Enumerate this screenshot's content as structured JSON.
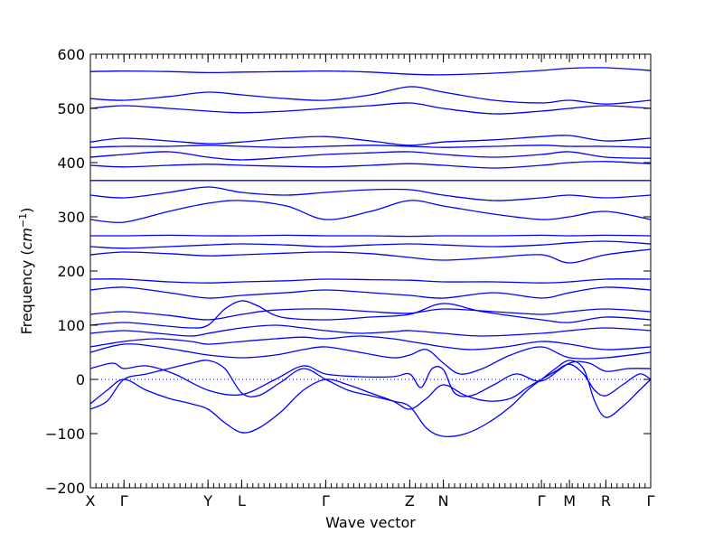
{
  "chart_data": {
    "type": "line",
    "xlabel": "Wave vector",
    "ylabel_text": "Frequency (",
    "ylabel_unit_base": "cm",
    "ylabel_unit_exp": "−1",
    "ylabel_close": ")",
    "ylim": [
      -200,
      600
    ],
    "yticks": [
      -200,
      -100,
      0,
      100,
      200,
      300,
      400,
      500,
      600
    ],
    "ytick_labels": [
      "−200",
      "−100",
      "0",
      "100",
      "200",
      "300",
      "400",
      "500",
      "600"
    ],
    "xlim": [
      0,
      100
    ],
    "high_symmetry_points": [
      {
        "label": "X",
        "x": 0
      },
      {
        "label": "Γ",
        "x": 6
      },
      {
        "label": "Y",
        "x": 21
      },
      {
        "label": "L",
        "x": 27
      },
      {
        "label": "Γ",
        "x": 42
      },
      {
        "label": "Z",
        "x": 57
      },
      {
        "label": "N",
        "x": 63
      },
      {
        "label": "Γ",
        "x": 80.5
      },
      {
        "label": "M",
        "x": 85.5
      },
      {
        "label": "R",
        "x": 92
      },
      {
        "label": "Γ",
        "x": 100
      }
    ],
    "zero_line": {
      "y": 0,
      "style": "dotted",
      "color": "#0000ff"
    },
    "line_color": "#0000ff",
    "series": [
      {
        "x": [
          0,
          3,
          6,
          10,
          14,
          18,
          21,
          24,
          27,
          30,
          34,
          38,
          42,
          46,
          50,
          54,
          57,
          60,
          63,
          67,
          71,
          75,
          78,
          80.5,
          83,
          85.5,
          88,
          90,
          92,
          95,
          98,
          100
        ],
        "y": [
          -55,
          -40,
          0,
          10,
          20,
          30,
          35,
          20,
          -25,
          -30,
          -5,
          20,
          0,
          -20,
          -30,
          -40,
          -50,
          -90,
          -105,
          -100,
          -80,
          -50,
          -20,
          0,
          20,
          35,
          20,
          -40,
          -70,
          -50,
          -20,
          0
        ]
      },
      {
        "x": [
          0,
          3,
          6,
          10,
          14,
          18,
          21,
          24,
          27,
          30,
          34,
          38,
          42,
          46,
          50,
          54,
          57,
          60,
          63,
          67,
          71,
          75,
          78,
          80.5,
          83,
          85.5,
          88,
          90,
          92,
          95,
          98,
          100
        ],
        "y": [
          -45,
          -20,
          0,
          -20,
          -35,
          -45,
          -55,
          -80,
          -98,
          -90,
          -60,
          -20,
          0,
          -10,
          -25,
          -40,
          -55,
          -35,
          -10,
          -30,
          -40,
          -35,
          -15,
          0,
          15,
          28,
          10,
          -20,
          -30,
          -10,
          10,
          0
        ]
      },
      {
        "x": [
          0,
          4,
          6,
          10,
          15,
          21,
          27,
          33,
          38,
          42,
          48,
          54,
          57,
          59,
          61,
          63,
          65,
          68,
          72,
          76,
          80.5,
          85.5,
          89,
          92,
          96,
          100
        ],
        "y": [
          20,
          30,
          20,
          25,
          10,
          -20,
          -28,
          0,
          25,
          10,
          5,
          5,
          10,
          -15,
          20,
          18,
          -25,
          -30,
          -10,
          10,
          -3,
          30,
          30,
          15,
          20,
          20
        ]
      },
      {
        "x": [
          0,
          6,
          12,
          18,
          21,
          27,
          33,
          38,
          42,
          48,
          54,
          57,
          60,
          63,
          66,
          70,
          75,
          80.5,
          85.5,
          92,
          100
        ],
        "y": [
          50,
          65,
          60,
          50,
          45,
          40,
          45,
          55,
          60,
          50,
          40,
          45,
          55,
          30,
          10,
          20,
          45,
          60,
          40,
          40,
          50
        ]
      },
      {
        "x": [
          0,
          6,
          12,
          18,
          21,
          27,
          33,
          38,
          42,
          48,
          54,
          57,
          60,
          63,
          68,
          74,
          80.5,
          85.5,
          92,
          100
        ],
        "y": [
          60,
          70,
          75,
          70,
          65,
          70,
          75,
          78,
          75,
          80,
          75,
          70,
          65,
          60,
          55,
          60,
          70,
          65,
          55,
          60
        ]
      },
      {
        "x": [
          0,
          6,
          12,
          18,
          21,
          27,
          33,
          38,
          42,
          48,
          54,
          57,
          63,
          70,
          80.5,
          85.5,
          92,
          100
        ],
        "y": [
          85,
          90,
          85,
          80,
          85,
          95,
          100,
          95,
          90,
          85,
          88,
          90,
          85,
          80,
          85,
          90,
          95,
          90
        ]
      },
      {
        "x": [
          0,
          6,
          12,
          18,
          21,
          24,
          27,
          30,
          34,
          42,
          50,
          57,
          63,
          70,
          80.5,
          85.5,
          92,
          100
        ],
        "y": [
          100,
          105,
          100,
          95,
          100,
          130,
          145,
          135,
          115,
          110,
          115,
          120,
          140,
          125,
          110,
          105,
          115,
          110
        ]
      },
      {
        "x": [
          0,
          6,
          14,
          21,
          27,
          33,
          42,
          50,
          57,
          63,
          72,
          80.5,
          85.5,
          92,
          100
        ],
        "y": [
          120,
          125,
          118,
          110,
          120,
          128,
          130,
          125,
          122,
          130,
          125,
          120,
          125,
          130,
          125
        ]
      },
      {
        "x": [
          0,
          6,
          14,
          21,
          27,
          35,
          42,
          50,
          57,
          63,
          72,
          80.5,
          85.5,
          92,
          100
        ],
        "y": [
          165,
          170,
          160,
          150,
          155,
          160,
          165,
          160,
          155,
          150,
          160,
          150,
          160,
          170,
          165
        ]
      },
      {
        "x": [
          0,
          6,
          14,
          21,
          27,
          35,
          42,
          50,
          57,
          63,
          72,
          80.5,
          85.5,
          92,
          100
        ],
        "y": [
          185,
          185,
          180,
          178,
          180,
          182,
          185,
          184,
          183,
          180,
          180,
          178,
          180,
          185,
          185
        ]
      },
      {
        "x": [
          0,
          6,
          14,
          21,
          27,
          35,
          42,
          50,
          57,
          63,
          72,
          80.5,
          85.5,
          92,
          100
        ],
        "y": [
          230,
          235,
          232,
          228,
          230,
          233,
          235,
          232,
          225,
          220,
          225,
          230,
          215,
          230,
          240
        ]
      },
      {
        "x": [
          0,
          6,
          14,
          21,
          27,
          35,
          42,
          50,
          57,
          63,
          72,
          80.5,
          85.5,
          92,
          100
        ],
        "y": [
          245,
          242,
          245,
          248,
          250,
          248,
          245,
          248,
          250,
          248,
          245,
          248,
          252,
          255,
          250
        ]
      },
      {
        "x": [
          0,
          6,
          14,
          21,
          27,
          35,
          42,
          50,
          57,
          63,
          72,
          80.5,
          85.5,
          92,
          100
        ],
        "y": [
          265,
          265,
          266,
          265,
          265,
          266,
          265,
          265,
          264,
          265,
          265,
          266,
          265,
          266,
          265
        ]
      },
      {
        "x": [
          0,
          6,
          14,
          21,
          27,
          35,
          42,
          50,
          57,
          63,
          72,
          80.5,
          85.5,
          92,
          100
        ],
        "y": [
          295,
          290,
          310,
          325,
          330,
          320,
          295,
          310,
          330,
          320,
          305,
          295,
          300,
          310,
          295
        ]
      },
      {
        "x": [
          0,
          6,
          14,
          21,
          27,
          35,
          42,
          50,
          57,
          63,
          72,
          80.5,
          85.5,
          92,
          100
        ],
        "y": [
          340,
          335,
          345,
          355,
          345,
          340,
          345,
          350,
          350,
          340,
          330,
          335,
          340,
          335,
          340
        ]
      },
      {
        "x": [
          0,
          100
        ],
        "y": [
          367,
          367
        ]
      },
      {
        "x": [
          0,
          6,
          14,
          21,
          27,
          35,
          42,
          50,
          57,
          63,
          72,
          80.5,
          85.5,
          92,
          100
        ],
        "y": [
          395,
          392,
          395,
          397,
          395,
          393,
          392,
          395,
          398,
          395,
          390,
          395,
          400,
          402,
          398
        ]
      },
      {
        "x": [
          0,
          6,
          14,
          21,
          27,
          35,
          42,
          50,
          57,
          63,
          72,
          80.5,
          85.5,
          92,
          100
        ],
        "y": [
          410,
          415,
          420,
          410,
          405,
          410,
          415,
          418,
          420,
          415,
          410,
          415,
          420,
          410,
          408
        ]
      },
      {
        "x": [
          0,
          6,
          14,
          21,
          27,
          35,
          42,
          50,
          57,
          63,
          72,
          80.5,
          85.5,
          92,
          100
        ],
        "y": [
          428,
          430,
          430,
          432,
          430,
          428,
          430,
          432,
          430,
          428,
          430,
          432,
          430,
          430,
          428
        ]
      },
      {
        "x": [
          0,
          6,
          14,
          21,
          27,
          35,
          42,
          50,
          57,
          63,
          72,
          80.5,
          85.5,
          92,
          100
        ],
        "y": [
          438,
          445,
          440,
          435,
          438,
          445,
          448,
          440,
          432,
          438,
          442,
          448,
          450,
          440,
          445
        ]
      },
      {
        "x": [
          0,
          6,
          14,
          21,
          27,
          35,
          42,
          50,
          57,
          63,
          72,
          80.5,
          85.5,
          92,
          100
        ],
        "y": [
          500,
          505,
          500,
          495,
          492,
          495,
          500,
          505,
          510,
          500,
          490,
          495,
          500,
          505,
          500
        ]
      },
      {
        "x": [
          0,
          6,
          14,
          21,
          27,
          35,
          42,
          50,
          57,
          63,
          72,
          80.5,
          85.5,
          92,
          100
        ],
        "y": [
          518,
          515,
          522,
          530,
          525,
          518,
          515,
          525,
          540,
          530,
          515,
          510,
          515,
          508,
          515
        ]
      },
      {
        "x": [
          0,
          6,
          14,
          21,
          27,
          35,
          42,
          50,
          57,
          63,
          72,
          80.5,
          85.5,
          92,
          100
        ],
        "y": [
          568,
          569,
          568,
          566,
          567,
          568,
          569,
          567,
          563,
          562,
          565,
          570,
          574,
          575,
          570
        ]
      }
    ]
  }
}
